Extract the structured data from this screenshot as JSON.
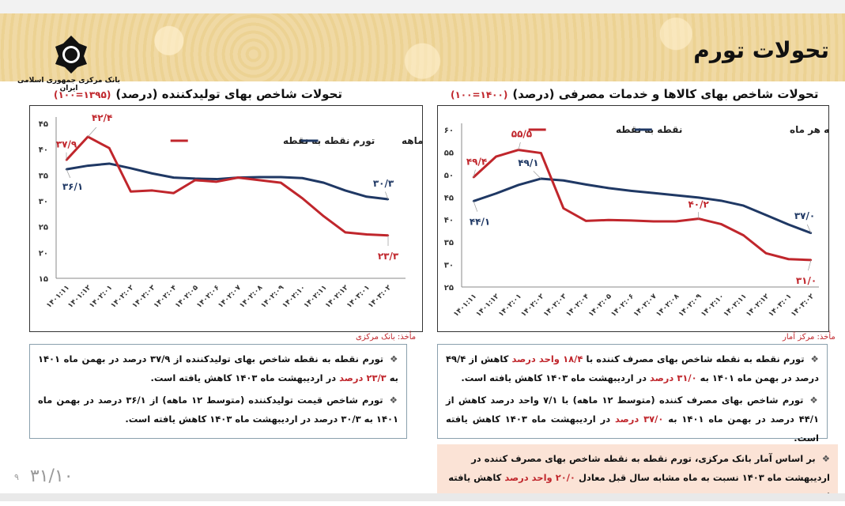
{
  "header": {
    "title": "تحولات تورم",
    "logo_text": "بانک مرکزی جمهوری اسلامی ایران"
  },
  "colors": {
    "red": "#c0262c",
    "blue": "#1f3864"
  },
  "chart_data": [
    {
      "type": "line",
      "title": "تحولات شاخص بهای تولیدکننده (درصد)",
      "subtitle": "(۱۳۹۵=۱۰۰)",
      "source": "مأخذ: بانک مرکزی",
      "categories": [
        "۱۴۰۱:۱۱",
        "۱۴۰۱:۱۲",
        "۱۴۰۲:۰۱",
        "۱۴۰۲:۰۲",
        "۱۴۰۲:۰۳",
        "۱۴۰۲:۰۴",
        "۱۴۰۲:۰۵",
        "۱۴۰۲:۰۶",
        "۱۴۰۲:۰۷",
        "۱۴۰۲:۰۸",
        "۱۴۰۲:۰۹",
        "۱۴۰۲:۱۰",
        "۱۴۰۲:۱۱",
        "۱۴۰۲:۱۲",
        "۱۴۰۳:۰۱",
        "۱۴۰۳:۰۲"
      ],
      "ylim": [
        15,
        45
      ],
      "yticks": [
        15,
        20,
        25,
        30,
        35,
        40,
        45
      ],
      "ytick_labels": [
        "۱۵",
        "۲۰",
        "۲۵",
        "۳۰",
        "۳۵",
        "۴۰",
        "۴۵"
      ],
      "grid": false,
      "legend": "top-right",
      "series": [
        {
          "name": "تورم نقطه به نقطه",
          "color": "#c0262c",
          "values": [
            37.9,
            42.4,
            40.2,
            31.8,
            32.0,
            31.5,
            34.0,
            33.7,
            34.5,
            34.0,
            33.5,
            30.5,
            27.0,
            23.9,
            23.5,
            23.3
          ]
        },
        {
          "name": "تورم دوازده ماهه",
          "color": "#1f3864",
          "values": [
            36.1,
            36.8,
            37.2,
            36.3,
            35.3,
            34.5,
            34.3,
            34.2,
            34.5,
            34.6,
            34.6,
            34.4,
            33.5,
            32.0,
            30.8,
            30.3
          ]
        }
      ],
      "annotations": [
        {
          "series": 0,
          "index": 0,
          "text": "۳۷/۹"
        },
        {
          "series": 0,
          "index": 1,
          "text": "۴۲/۴"
        },
        {
          "series": 1,
          "index": 0,
          "text": "۳۶/۱"
        },
        {
          "series": 1,
          "index": 15,
          "text": "۳۰/۳"
        },
        {
          "series": 0,
          "index": 15,
          "text": "۲۳/۳"
        }
      ]
    },
    {
      "type": "line",
      "title": "تحولات شاخص بهای کالاها و خدمات مصرفی (درصد)",
      "subtitle": "(۱۴۰۰=۱۰۰)",
      "source": "مأخذ: مرکز آمار",
      "categories": [
        "۱۴۰۱:۱۱",
        "۱۴۰۱:۱۲",
        "۱۴۰۲:۰۱",
        "۱۴۰۲:۰۲",
        "۱۴۰۲:۰۳",
        "۱۴۰۲:۰۴",
        "۱۴۰۲:۰۵",
        "۱۴۰۲:۰۶",
        "۱۴۰۲:۰۷",
        "۱۴۰۲:۰۸",
        "۱۴۰۲:۰۹",
        "۱۴۰۲:۱۰",
        "۱۴۰۲:۱۱",
        "۱۴۰۲:۱۲",
        "۱۴۰۳:۰۱",
        "۱۴۰۳:۰۲"
      ],
      "ylim": [
        25,
        60
      ],
      "yticks": [
        25,
        30,
        35,
        40,
        45,
        50,
        55,
        60
      ],
      "ytick_labels": [
        "۲۵",
        "۳۰",
        "۳۵",
        "۴۰",
        "۴۵",
        "۵۰",
        "۵۵",
        "۶۰"
      ],
      "grid": false,
      "legend": "top",
      "series": [
        {
          "name": "نقطه به نقطه",
          "color": "#c0262c",
          "values": [
            49.4,
            54.0,
            55.5,
            54.8,
            42.5,
            39.7,
            39.9,
            39.8,
            39.6,
            39.6,
            40.2,
            39.0,
            36.5,
            32.5,
            31.2,
            31.0
          ]
        },
        {
          "name": "دوازده ماهه منتهی به هر ماه",
          "color": "#1f3864",
          "values": [
            44.1,
            45.8,
            47.7,
            49.1,
            48.7,
            47.8,
            47.0,
            46.4,
            45.9,
            45.4,
            44.9,
            44.2,
            43.1,
            41.0,
            38.9,
            37.0
          ]
        }
      ],
      "annotations": [
        {
          "series": 0,
          "index": 0,
          "text": "۴۹/۴"
        },
        {
          "series": 0,
          "index": 2,
          "text": "۵۵/۵"
        },
        {
          "series": 1,
          "index": 3,
          "text": "۴۹/۱"
        },
        {
          "series": 1,
          "index": 0,
          "text": "۴۴/۱"
        },
        {
          "series": 0,
          "index": 10,
          "text": "۴۰/۲"
        },
        {
          "series": 1,
          "index": 15,
          "text": "۳۷/۰"
        },
        {
          "series": 0,
          "index": 15,
          "text": "۳۱/۰"
        }
      ]
    }
  ],
  "notes_ppi": {
    "p1": {
      "a": "تورم نقطه به نقطه شاخص بهای تولیدکننده  از ۳۷/۹ درصد در بهمن ماه ۱۴۰۱ به ",
      "b": "۲۳/۳ درصد",
      "c": " در اردیبهشت ماه ۱۴۰۳ کاهش یافته است."
    },
    "p2": {
      "a": "تورم شاخص قیمت تولیدکننده (متوسط ۱۲ ماهه) از ۳۶/۱ درصد در بهمن ماه ۱۴۰۱ به ۳۰/۳ درصد در اردیبهشت ماه ۱۴۰۳ کاهش یافته است."
    }
  },
  "notes_cpi": {
    "p1": {
      "a": "تورم نقطه به نقطه شاخص بهای مصرف کننده با ",
      "b": "۱۸/۴ واحد درصد",
      "c": " کاهش  از ۴۹/۴ درصد در بهمن ماه ۱۴۰۱ به ",
      "d": "۳۱/۰ درصد",
      "e": " در اردیبهشت ماه ۱۴۰۳ کاهش یافته است."
    },
    "p2": {
      "a": "تورم شاخص بهای مصرف کننده (متوسط ۱۲ ماهه) با ۷/۱ واحد درصد کاهش از ۴۴/۱ درصد در بهمن ماه ۱۴۰۱ به ",
      "b": "۳۷/۰ درصد",
      "c": " در اردیبهشت ماه ۱۴۰۳ کاهش یافته است."
    }
  },
  "highlight": {
    "a": "بر اساس آمار بانک مرکزی، تورم نقطه به نقطه شاخص بهای مصرف کننده در اردیبهشت ماه ۱۴۰۳ نسبت به ماه مشابه سال قبل معادل ",
    "b": "۲۰/۰ واحد درصد",
    "c": " کاهش یافته است."
  },
  "bullet": "❖",
  "footer": {
    "page": "۹",
    "date": "۳۱/۱۰"
  }
}
